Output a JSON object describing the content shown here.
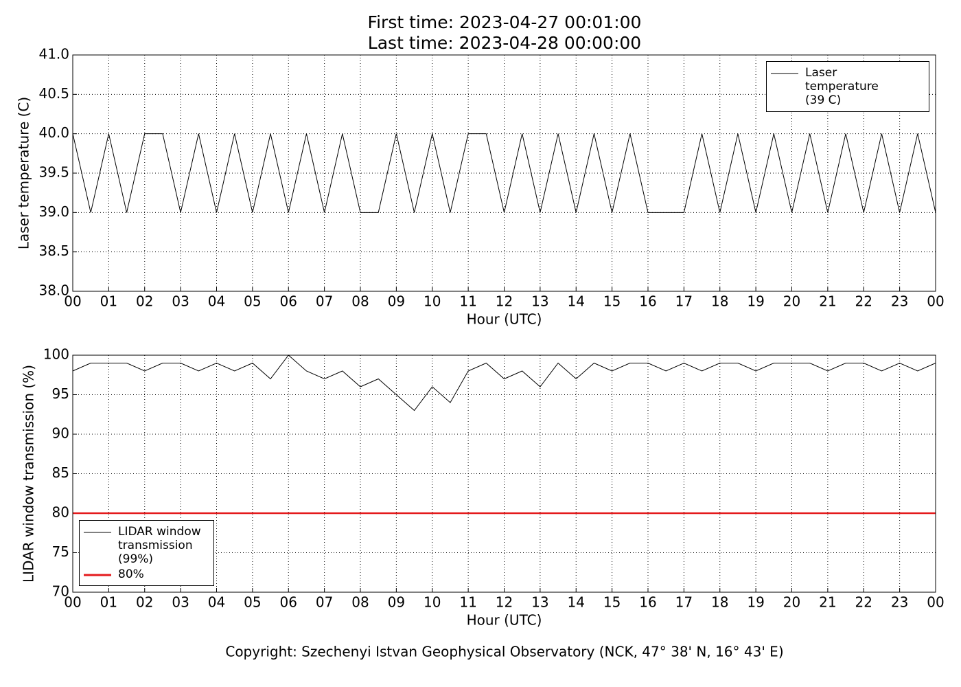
{
  "header": {
    "title_lines": [
      "First time: 2023-04-27 00:01:00",
      "Last time: 2023-04-28 00:00:00"
    ]
  },
  "chart_data": [
    {
      "type": "line",
      "ylabel": "Laser temperature (C)",
      "xlabel": "Hour (UTC)",
      "x": [
        0,
        0.5,
        1,
        1.5,
        2,
        2.5,
        3,
        3.5,
        4,
        4.5,
        5,
        5.5,
        6,
        6.5,
        7,
        7.5,
        8,
        8.5,
        9,
        9.5,
        10,
        10.5,
        11,
        11.5,
        12,
        12.5,
        13,
        13.5,
        14,
        14.5,
        15,
        15.5,
        16,
        16.5,
        17,
        17.5,
        18,
        18.5,
        19,
        19.5,
        20,
        20.5,
        21,
        21.5,
        22,
        22.5,
        23,
        23.5,
        24
      ],
      "series": [
        {
          "name": "Laser temperature (39 C)",
          "color": "#000000",
          "values": [
            40,
            39,
            40,
            39,
            40,
            40,
            39,
            40,
            39,
            40,
            39,
            40,
            39,
            40,
            39,
            40,
            39,
            39,
            40,
            39,
            40,
            39,
            40,
            40,
            39,
            40,
            39,
            40,
            39,
            40,
            39,
            40,
            39,
            39,
            39,
            40,
            39,
            40,
            39,
            40,
            39,
            40,
            39,
            40,
            39,
            40,
            39,
            40,
            39
          ]
        }
      ],
      "xlim": [
        0,
        24
      ],
      "ylim": [
        38,
        41
      ],
      "xticks": [
        {
          "value": 0,
          "label": "00"
        },
        {
          "value": 1,
          "label": "01"
        },
        {
          "value": 2,
          "label": "02"
        },
        {
          "value": 3,
          "label": "03"
        },
        {
          "value": 4,
          "label": "04"
        },
        {
          "value": 5,
          "label": "05"
        },
        {
          "value": 6,
          "label": "06"
        },
        {
          "value": 7,
          "label": "07"
        },
        {
          "value": 8,
          "label": "08"
        },
        {
          "value": 9,
          "label": "09"
        },
        {
          "value": 10,
          "label": "10"
        },
        {
          "value": 11,
          "label": "11"
        },
        {
          "value": 12,
          "label": "12"
        },
        {
          "value": 13,
          "label": "13"
        },
        {
          "value": 14,
          "label": "14"
        },
        {
          "value": 15,
          "label": "15"
        },
        {
          "value": 16,
          "label": "16"
        },
        {
          "value": 17,
          "label": "17"
        },
        {
          "value": 18,
          "label": "18"
        },
        {
          "value": 19,
          "label": "19"
        },
        {
          "value": 20,
          "label": "20"
        },
        {
          "value": 21,
          "label": "21"
        },
        {
          "value": 22,
          "label": "22"
        },
        {
          "value": 23,
          "label": "23"
        },
        {
          "value": 24,
          "label": "00"
        }
      ],
      "yticks": [
        {
          "value": 38,
          "label": "38.0"
        },
        {
          "value": 38.5,
          "label": "38.5"
        },
        {
          "value": 39,
          "label": "39.0"
        },
        {
          "value": 39.5,
          "label": "39.5"
        },
        {
          "value": 40,
          "label": "40.0"
        },
        {
          "value": 40.5,
          "label": "40.5"
        },
        {
          "value": 41,
          "label": "41.0"
        }
      ],
      "grid": true,
      "legend": "upper right"
    },
    {
      "type": "line",
      "ylabel": "LIDAR window transmission (%)",
      "xlabel": "Hour (UTC)",
      "x": [
        0,
        0.5,
        1,
        1.5,
        2,
        2.5,
        3,
        3.5,
        4,
        4.5,
        5,
        5.5,
        6,
        6.5,
        7,
        7.5,
        8,
        8.5,
        9,
        9.5,
        10,
        10.5,
        11,
        11.5,
        12,
        12.5,
        13,
        13.5,
        14,
        14.5,
        15,
        15.5,
        16,
        16.5,
        17,
        17.5,
        18,
        18.5,
        19,
        19.5,
        20,
        20.5,
        21,
        21.5,
        22,
        22.5,
        23,
        23.5,
        24
      ],
      "series": [
        {
          "name": "LIDAR window transmission (99%)",
          "color": "#000000",
          "values": [
            98,
            99,
            99,
            99,
            98,
            99,
            99,
            98,
            99,
            98,
            99,
            97,
            100,
            98,
            97,
            98,
            96,
            97,
            95,
            93,
            96,
            94,
            98,
            99,
            97,
            98,
            96,
            99,
            97,
            99,
            98,
            99,
            99,
            98,
            99,
            98,
            99,
            99,
            98,
            99,
            99,
            99,
            98,
            99,
            99,
            98,
            99,
            98,
            99
          ]
        }
      ],
      "threshold": {
        "name": "80%",
        "value": 80,
        "color": "#e41a1c"
      },
      "xlim": [
        0,
        24
      ],
      "ylim": [
        70,
        100
      ],
      "xticks": [
        {
          "value": 0,
          "label": "00"
        },
        {
          "value": 1,
          "label": "01"
        },
        {
          "value": 2,
          "label": "02"
        },
        {
          "value": 3,
          "label": "03"
        },
        {
          "value": 4,
          "label": "04"
        },
        {
          "value": 5,
          "label": "05"
        },
        {
          "value": 6,
          "label": "06"
        },
        {
          "value": 7,
          "label": "07"
        },
        {
          "value": 8,
          "label": "08"
        },
        {
          "value": 9,
          "label": "09"
        },
        {
          "value": 10,
          "label": "10"
        },
        {
          "value": 11,
          "label": "11"
        },
        {
          "value": 12,
          "label": "12"
        },
        {
          "value": 13,
          "label": "13"
        },
        {
          "value": 14,
          "label": "14"
        },
        {
          "value": 15,
          "label": "15"
        },
        {
          "value": 16,
          "label": "16"
        },
        {
          "value": 17,
          "label": "17"
        },
        {
          "value": 18,
          "label": "18"
        },
        {
          "value": 19,
          "label": "19"
        },
        {
          "value": 20,
          "label": "20"
        },
        {
          "value": 21,
          "label": "21"
        },
        {
          "value": 22,
          "label": "22"
        },
        {
          "value": 23,
          "label": "23"
        },
        {
          "value": 24,
          "label": "00"
        }
      ],
      "yticks": [
        70,
        75,
        80,
        85,
        90,
        95,
        100
      ],
      "grid": true,
      "legend": "lower left"
    }
  ],
  "footer": {
    "text": "Copyright: Szechenyi Istvan Geophysical Observatory (NCK, 47° 38' N, 16° 43' E)"
  }
}
